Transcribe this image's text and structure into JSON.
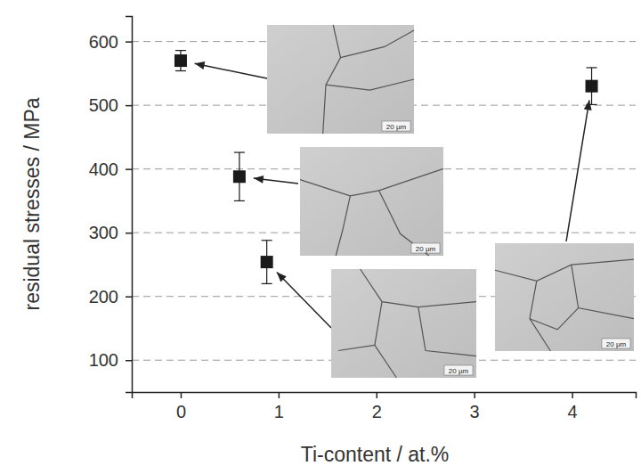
{
  "chart_data": {
    "type": "scatter",
    "x_label": "Ti-content / at.%",
    "y_label": "residual stresses / MPa",
    "x": [
      0,
      0.6,
      0.88,
      4.2
    ],
    "values": [
      570,
      388,
      254,
      530
    ],
    "errors": [
      16,
      38,
      34,
      29
    ],
    "color": "#1a1a1a",
    "marker": "square",
    "annotations": [
      "20 µm",
      "20 µm",
      "20 µm",
      "20 µm"
    ],
    "xlim": [
      -0.5,
      4.65
    ],
    "xticks": [
      0,
      1,
      2,
      3,
      4
    ],
    "ylim": [
      50,
      640
    ],
    "yticks": [
      100,
      200,
      300,
      400,
      500,
      600
    ],
    "grid": true
  }
}
